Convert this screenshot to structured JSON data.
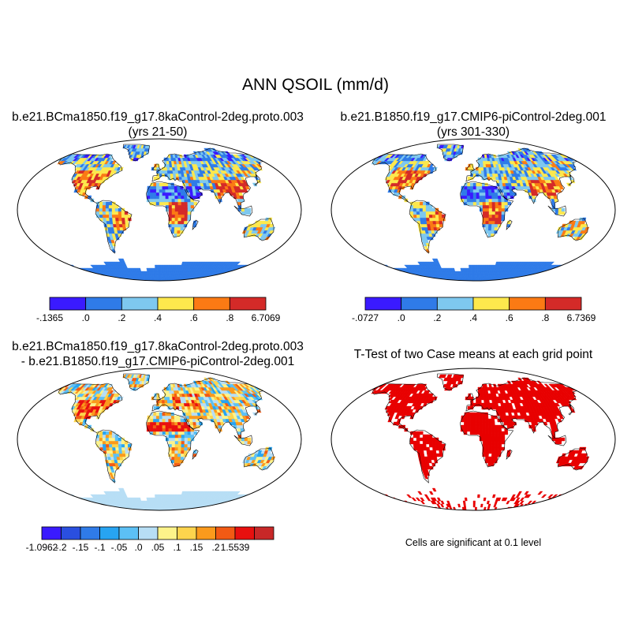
{
  "title": "ANN QSOIL (mm/d)",
  "panels": {
    "tl": {
      "line1": "b.e21.BCma1850.f19_g17.8kaControl-2deg.proto.003",
      "line2": "(yrs 21-50)"
    },
    "tr": {
      "line1": "b.e21.B1850.f19_g17.CMIP6-piControl-2deg.001",
      "line2": "(yrs 301-330)"
    },
    "bl": {
      "line1": "b.e21.BCma1850.f19_g17.8kaControl-2deg.proto.003",
      "line2": "- b.e21.B1850.f19_g17.CMIP6-piControl-2deg.001"
    },
    "br": {
      "line1": "T-Test of two Case means at each grid point",
      "note": "Cells are significant at 0.1 level"
    }
  },
  "colorbars": {
    "tl": {
      "colors": [
        "#3a1aff",
        "#2f7be8",
        "#7ec8ef",
        "#fde84d",
        "#fb7a14",
        "#d42a28"
      ],
      "labels": [
        "-.1365",
        ".0",
        ".2",
        ".4",
        ".6",
        ".8",
        "6.7069"
      ]
    },
    "tr": {
      "colors": [
        "#3a1aff",
        "#2f7be8",
        "#7ec8ef",
        "#fde84d",
        "#fb7a14",
        "#d42a28"
      ],
      "labels": [
        "-.0727",
        ".0",
        ".2",
        ".4",
        ".6",
        ".8",
        "6.7369"
      ]
    },
    "bl": {
      "colors": [
        "#3a1aff",
        "#2a4fe0",
        "#2f7be8",
        "#27a4f2",
        "#5cc0f5",
        "#b7def5",
        "#fdf38a",
        "#fdd44d",
        "#fb9a1c",
        "#f25a14",
        "#e8100f",
        "#c82828"
      ],
      "labels": [
        "-1.0962",
        "-.2",
        "-.15",
        "-.1",
        "-.05",
        ".0",
        ".05",
        ".1",
        ".15",
        ".2",
        "1.5539"
      ]
    }
  },
  "map_colors": {
    "ocean": "#ffffff",
    "ice": "#2f7be8",
    "diff_ice": "#b7def5",
    "signif": "#e80000"
  }
}
